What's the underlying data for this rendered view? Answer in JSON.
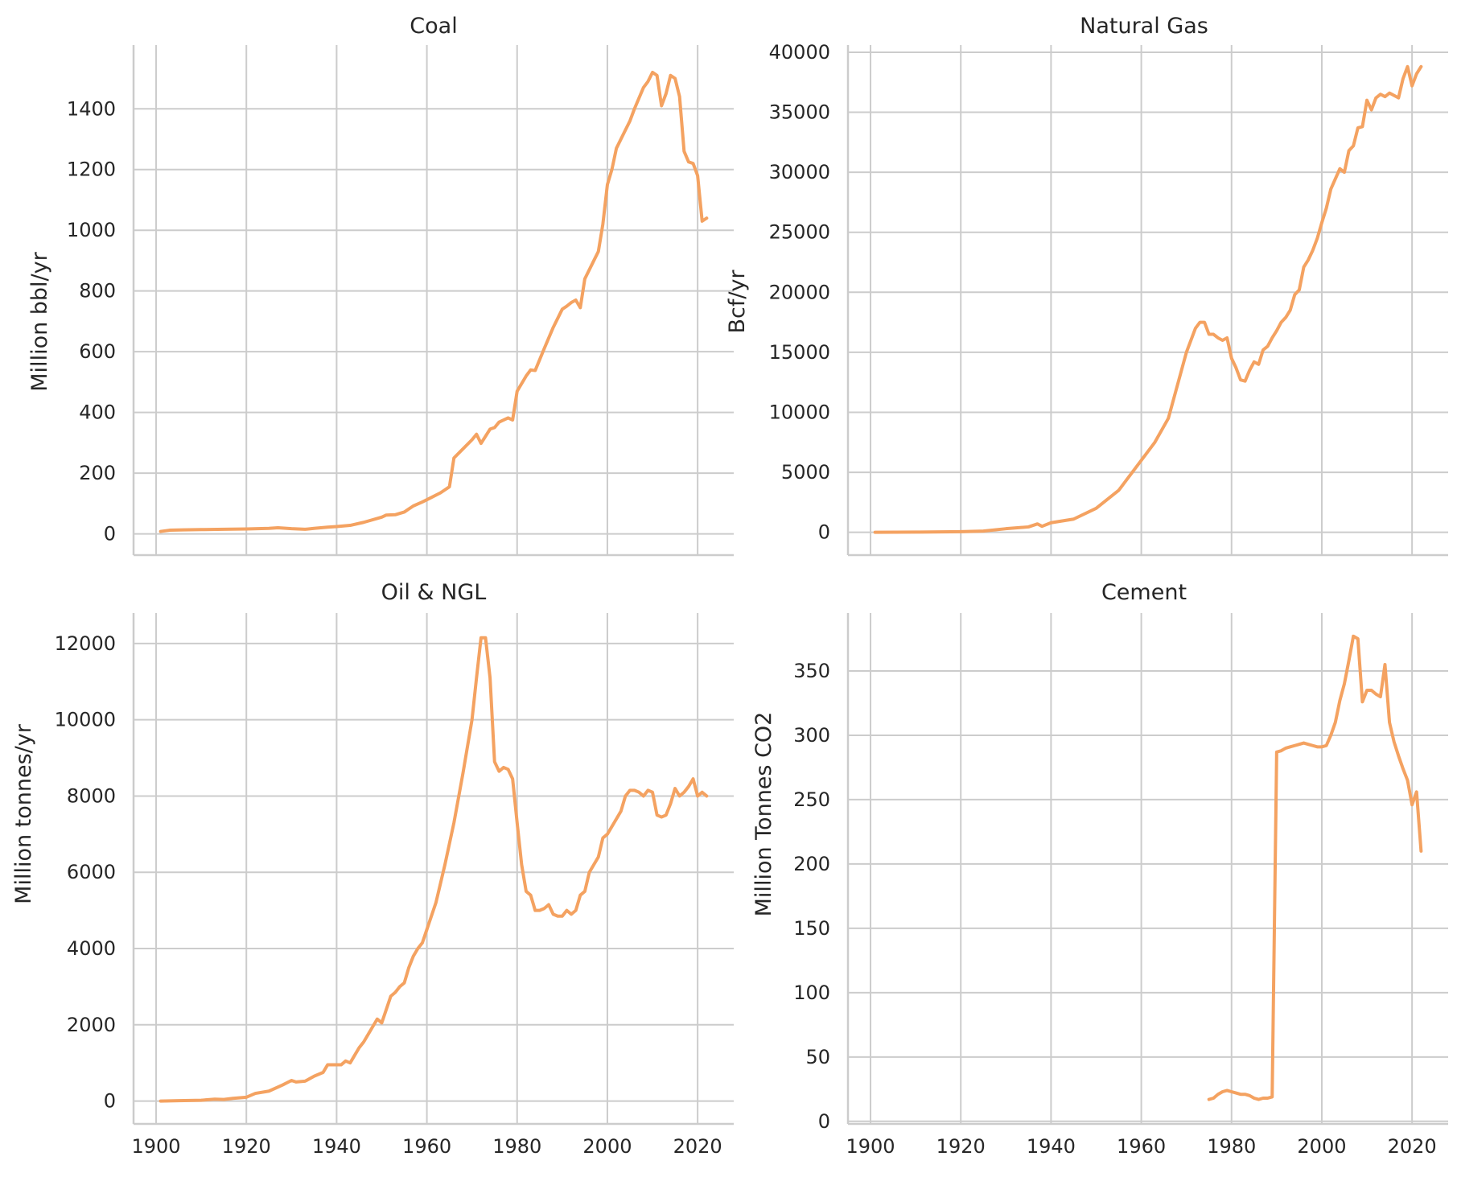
{
  "style": {
    "line_color": "#f4a261",
    "grid_color": "#cccccc",
    "text_color": "#262626",
    "background": "#ffffff"
  },
  "chart_data": [
    {
      "type": "line",
      "title": "Coal",
      "xlabel": "",
      "ylabel": "Million bbl/yr",
      "xlim": [
        1895,
        2028
      ],
      "ylim": [
        -70,
        1610
      ],
      "xticks": [
        1900,
        1920,
        1940,
        1960,
        1980,
        2000,
        2020
      ],
      "yticks": [
        0,
        200,
        400,
        600,
        800,
        1000,
        1200,
        1400
      ],
      "show_xtick_labels": false,
      "grid": true,
      "series": [
        {
          "x": [
            1901,
            1903,
            1906,
            1910,
            1915,
            1920,
            1925,
            1927,
            1930,
            1933,
            1935,
            1938,
            1940,
            1943,
            1946,
            1950,
            1951,
            1953,
            1955,
            1957,
            1959,
            1961,
            1963,
            1964,
            1965,
            1966,
            1968,
            1970,
            1971,
            1972,
            1974,
            1975,
            1976,
            1977,
            1978,
            1979,
            1980,
            1982,
            1983,
            1984,
            1986,
            1988,
            1990,
            1991,
            1992,
            1993,
            1994,
            1995,
            1997,
            1998,
            1999,
            2000,
            2001,
            2002,
            2004,
            2005,
            2006,
            2008,
            2009,
            2010,
            2011,
            2012,
            2013,
            2014,
            2015,
            2016,
            2017,
            2018,
            2019,
            2020,
            2021,
            2022
          ],
          "y": [
            8,
            12,
            13,
            14,
            15,
            16,
            18,
            20,
            17,
            15,
            18,
            22,
            24,
            28,
            38,
            55,
            62,
            63,
            72,
            92,
            105,
            120,
            135,
            145,
            155,
            250,
            280,
            310,
            328,
            298,
            345,
            350,
            368,
            375,
            382,
            375,
            470,
            520,
            540,
            538,
            610,
            680,
            740,
            750,
            762,
            770,
            745,
            840,
            900,
            930,
            1020,
            1150,
            1200,
            1270,
            1330,
            1360,
            1400,
            1470,
            1490,
            1520,
            1510,
            1410,
            1450,
            1510,
            1500,
            1440,
            1260,
            1225,
            1220,
            1180,
            1030,
            1040
          ]
        }
      ]
    },
    {
      "type": "line",
      "title": "Natural Gas",
      "xlabel": "",
      "ylabel": "Bcf/yr",
      "xlim": [
        1895,
        2028
      ],
      "ylim": [
        -1900,
        40600
      ],
      "xticks": [
        1900,
        1920,
        1940,
        1960,
        1980,
        2000,
        2020
      ],
      "yticks": [
        0,
        5000,
        10000,
        15000,
        20000,
        25000,
        30000,
        35000,
        40000
      ],
      "show_xtick_labels": false,
      "grid": true,
      "series": [
        {
          "x": [
            1901,
            1910,
            1920,
            1925,
            1930,
            1935,
            1937,
            1938,
            1940,
            1945,
            1950,
            1955,
            1960,
            1963,
            1966,
            1970,
            1972,
            1973,
            1974,
            1975,
            1976,
            1977,
            1978,
            1979,
            1980,
            1981,
            1982,
            1983,
            1984,
            1985,
            1986,
            1987,
            1988,
            1989,
            1990,
            1991,
            1992,
            1993,
            1994,
            1995,
            1996,
            1997,
            1998,
            1999,
            2000,
            2001,
            2002,
            2004,
            2005,
            2006,
            2007,
            2008,
            2009,
            2010,
            2011,
            2012,
            2013,
            2014,
            2015,
            2016,
            2017,
            2018,
            2019,
            2020,
            2021,
            2022
          ],
          "y": [
            0,
            20,
            50,
            100,
            300,
            450,
            700,
            500,
            800,
            1100,
            2000,
            3500,
            6000,
            7500,
            9500,
            15000,
            17000,
            17500,
            17500,
            16500,
            16500,
            16200,
            16000,
            16200,
            14500,
            13700,
            12700,
            12600,
            13500,
            14200,
            14000,
            15200,
            15500,
            16200,
            16800,
            17500,
            17900,
            18500,
            19800,
            20200,
            22100,
            22700,
            23500,
            24500,
            25800,
            27000,
            28600,
            30300,
            30000,
            31800,
            32200,
            33700,
            33800,
            36000,
            35200,
            36200,
            36500,
            36300,
            36600,
            36400,
            36200,
            37800,
            38800,
            37200,
            38200,
            38800
          ]
        }
      ]
    },
    {
      "type": "line",
      "title": "Oil & NGL",
      "xlabel": "",
      "ylabel": "Million tonnes/yr",
      "xlim": [
        1895,
        2028
      ],
      "ylim": [
        -600,
        12800
      ],
      "xticks": [
        1900,
        1920,
        1940,
        1960,
        1980,
        2000,
        2020
      ],
      "yticks": [
        0,
        2000,
        4000,
        6000,
        8000,
        10000,
        12000
      ],
      "show_xtick_labels": true,
      "grid": true,
      "series": [
        {
          "x": [
            1901,
            1905,
            1910,
            1913,
            1915,
            1917,
            1920,
            1922,
            1925,
            1928,
            1930,
            1931,
            1933,
            1935,
            1937,
            1938,
            1940,
            1941,
            1942,
            1943,
            1944,
            1945,
            1946,
            1947,
            1948,
            1949,
            1950,
            1951,
            1952,
            1953,
            1954,
            1955,
            1956,
            1957,
            1958,
            1959,
            1960,
            1962,
            1964,
            1966,
            1968,
            1970,
            1971,
            1972,
            1973,
            1974,
            1975,
            1976,
            1977,
            1978,
            1979,
            1980,
            1981,
            1982,
            1983,
            1984,
            1985,
            1986,
            1987,
            1988,
            1989,
            1990,
            1991,
            1992,
            1993,
            1994,
            1995,
            1996,
            1997,
            1998,
            1999,
            2000,
            2001,
            2002,
            2003,
            2004,
            2005,
            2006,
            2007,
            2008,
            2009,
            2010,
            2011,
            2012,
            2013,
            2014,
            2015,
            2016,
            2017,
            2018,
            2019,
            2020,
            2021,
            2022
          ],
          "y": [
            0,
            10,
            20,
            50,
            40,
            70,
            100,
            200,
            260,
            420,
            540,
            500,
            520,
            650,
            750,
            950,
            950,
            950,
            1050,
            1000,
            1200,
            1400,
            1550,
            1750,
            1950,
            2150,
            2050,
            2400,
            2750,
            2850,
            3000,
            3100,
            3500,
            3800,
            4000,
            4150,
            4500,
            5200,
            6200,
            7300,
            8600,
            10000,
            11100,
            12150,
            12150,
            11100,
            8900,
            8650,
            8750,
            8700,
            8450,
            7300,
            6200,
            5500,
            5400,
            5000,
            5000,
            5050,
            5150,
            4900,
            4850,
            4850,
            5000,
            4900,
            5000,
            5400,
            5500,
            6000,
            6200,
            6400,
            6900,
            7000,
            7200,
            7400,
            7600,
            8000,
            8150,
            8150,
            8100,
            8000,
            8150,
            8100,
            7500,
            7450,
            7500,
            7800,
            8200,
            8000,
            8100,
            8250,
            8450,
            8000,
            8100,
            8000
          ]
        }
      ]
    },
    {
      "type": "line",
      "title": "Cement",
      "xlabel": "",
      "ylabel": "Million Tonnes CO2",
      "xlim": [
        1895,
        2028
      ],
      "ylim": [
        -2,
        395
      ],
      "xticks": [
        1900,
        1920,
        1940,
        1960,
        1980,
        2000,
        2020
      ],
      "yticks": [
        0,
        50,
        100,
        150,
        200,
        250,
        300,
        350
      ],
      "show_xtick_labels": true,
      "grid": true,
      "series": [
        {
          "x": [
            1975,
            1976,
            1977,
            1978,
            1979,
            1980,
            1981,
            1982,
            1983,
            1984,
            1985,
            1986,
            1987,
            1988,
            1989,
            1990,
            1991,
            1992,
            1993,
            1994,
            1995,
            1996,
            1997,
            1998,
            1999,
            2000,
            2001,
            2002,
            2003,
            2004,
            2005,
            2006,
            2007,
            2008,
            2009,
            2010,
            2011,
            2012,
            2013,
            2014,
            2015,
            2016,
            2017,
            2018,
            2019,
            2020,
            2021,
            2022
          ],
          "y": [
            17,
            18,
            21,
            23,
            24,
            23,
            22,
            21,
            21,
            20,
            18,
            17,
            18,
            18,
            19,
            287,
            288,
            290,
            291,
            292,
            293,
            294,
            293,
            292,
            291,
            291,
            292,
            300,
            310,
            327,
            340,
            358,
            377,
            375,
            326,
            335,
            335,
            332,
            330,
            355,
            310,
            295,
            284,
            274,
            265,
            246,
            256,
            210
          ]
        }
      ]
    }
  ]
}
